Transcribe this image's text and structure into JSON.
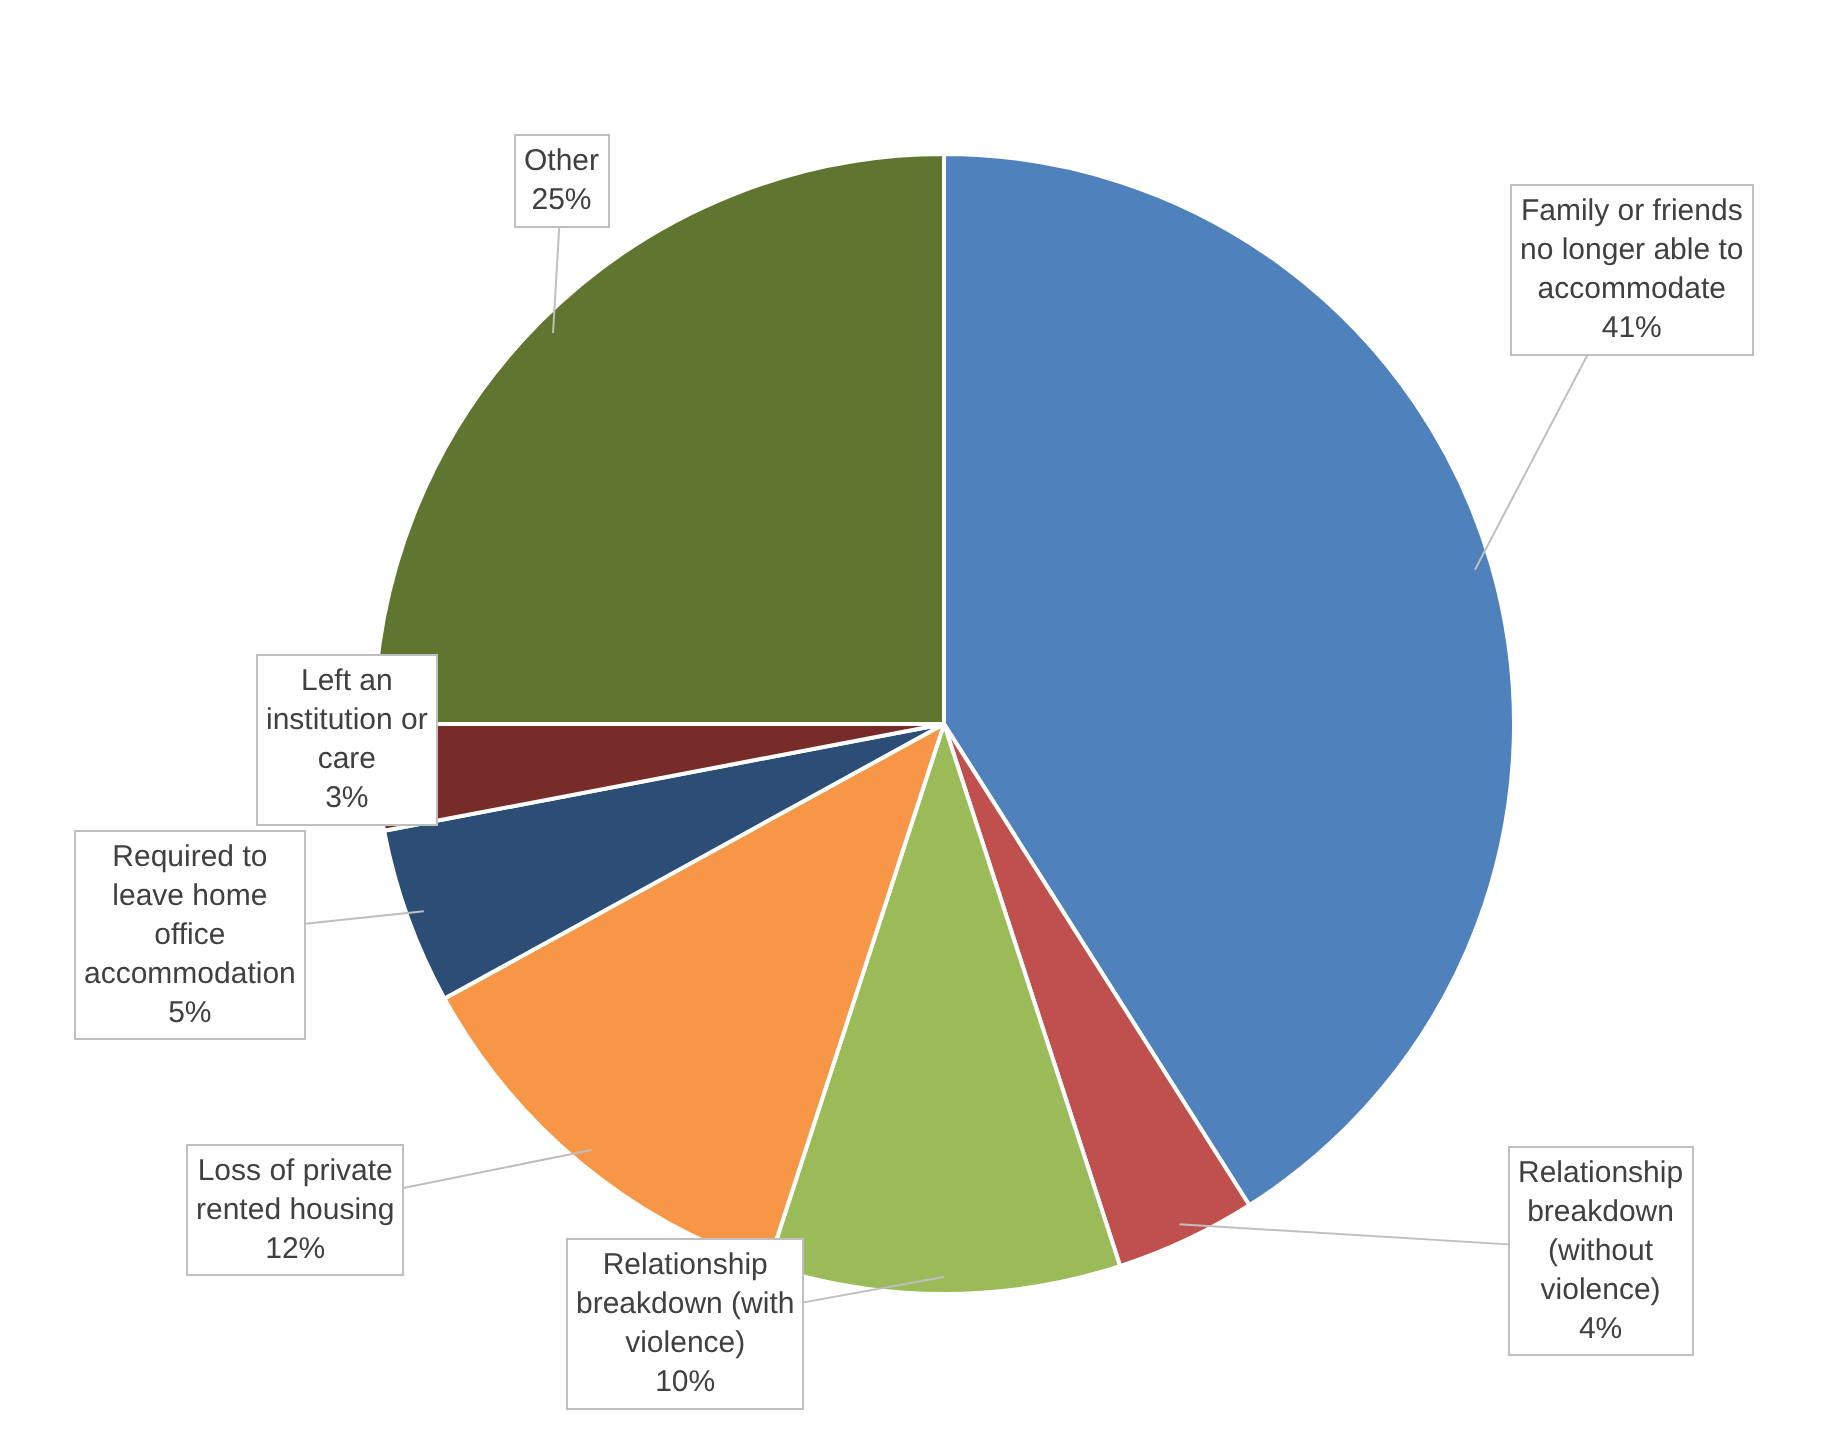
{
  "chart_data": {
    "type": "pie",
    "categories": [
      "Family or friends\nno longer able to\naccommodate",
      "Relationship\nbreakdown\n(without\nviolence)",
      "Relationship\nbreakdown (with\nviolence)",
      "Loss of private\nrented housing",
      "Required to\nleave home\noffice\naccommodation",
      "Left an\ninstitution or\ncare",
      "Other"
    ],
    "values": [
      41,
      4,
      10,
      12,
      5,
      3,
      25
    ],
    "value_labels": [
      "41%",
      "4%",
      "10%",
      "12%",
      "5%",
      "3%",
      "25%"
    ],
    "colors": [
      "#4f81bd",
      "#c0504d",
      "#9bbb59",
      "#f79646",
      "#2c4d75",
      "#772c2a",
      "#5f7530"
    ],
    "legend": false
  }
}
